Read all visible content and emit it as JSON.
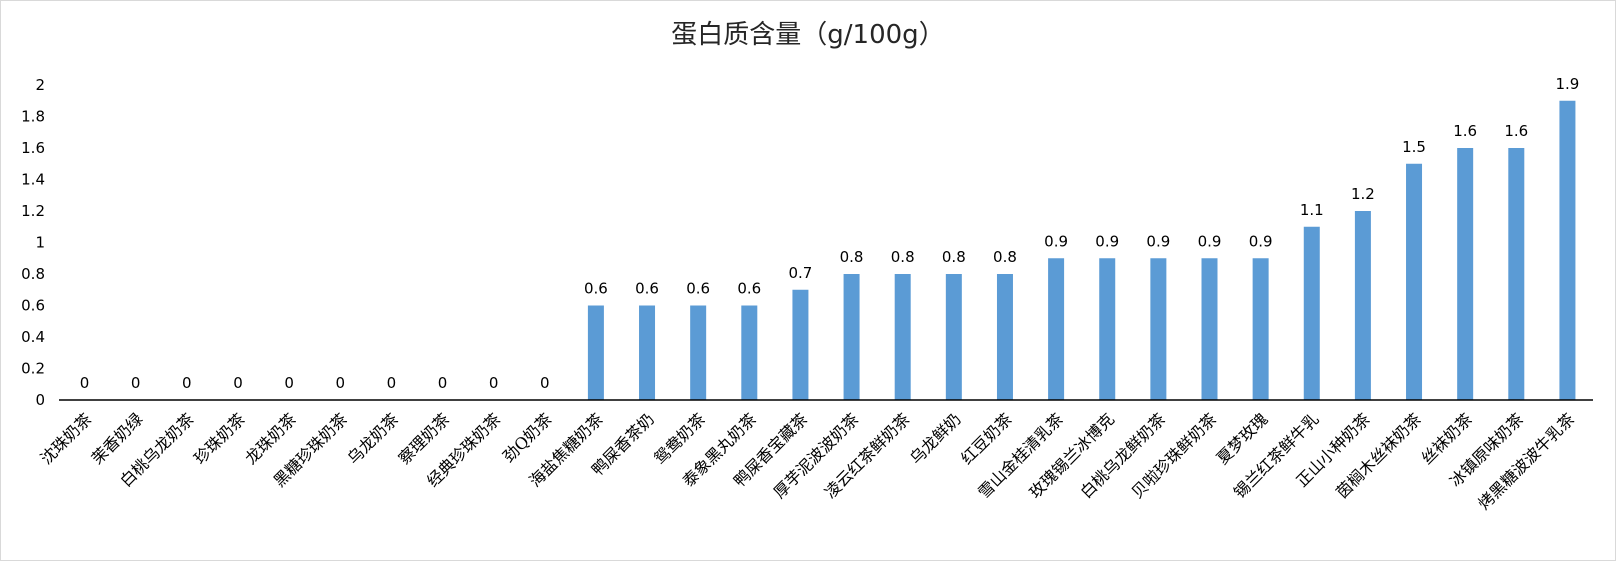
{
  "chart_data": {
    "type": "bar",
    "title": "蛋白质含量（g/100g）",
    "xlabel": "",
    "ylabel": "",
    "ylim": [
      0,
      2
    ],
    "y_ticks": [
      "0",
      "0.2",
      "0.4",
      "0.6",
      "0.8",
      "1",
      "1.2",
      "1.4",
      "1.6",
      "1.8",
      "2"
    ],
    "grid": false,
    "legend": "none",
    "bar_color": "#5b9bd5",
    "categories": [
      "沈珠奶茶",
      "茉香奶绿",
      "白桃乌龙奶茶",
      "珍珠奶茶",
      "龙珠奶茶",
      "黑糖珍珠奶茶",
      "乌龙奶茶",
      "察理奶茶",
      "经典珍珠奶茶",
      "劲Q奶茶",
      "海盐焦糖奶茶",
      "鸭屎香茶奶",
      "鸳鸯奶茶",
      "泰象黑丸奶茶",
      "鸭屎香宝藏茶",
      "厚芋泥波波奶茶",
      "凌云红茶鲜奶茶",
      "乌龙鲜奶",
      "红豆奶茶",
      "雪山金桂清乳茶",
      "玫瑰锡兰冰博克",
      "白桃乌龙鲜奶茶",
      "贝啦珍珠鲜奶茶",
      "夏梦玫瑰",
      "锡兰红茶鲜牛乳",
      "正山小种奶茶",
      "茵榈木丝袜奶茶",
      "丝袜奶茶",
      "冰镇原味奶茶",
      "烤黑糖波波牛乳茶"
    ],
    "values": [
      0,
      0,
      0,
      0,
      0,
      0,
      0,
      0,
      0,
      0,
      0.6,
      0.6,
      0.6,
      0.6,
      0.7,
      0.8,
      0.8,
      0.8,
      0.8,
      0.9,
      0.9,
      0.9,
      0.9,
      0.9,
      1.1,
      1.2,
      1.5,
      1.6,
      1.6,
      1.9
    ],
    "data_labels": [
      "0",
      "0",
      "0",
      "0",
      "0",
      "0",
      "0",
      "0",
      "0",
      "0",
      "0.6",
      "0.6",
      "0.6",
      "0.6",
      "0.7",
      "0.8",
      "0.8",
      "0.8",
      "0.8",
      "0.9",
      "0.9",
      "0.9",
      "0.9",
      "0.9",
      "1.1",
      "1.2",
      "1.5",
      "1.6",
      "1.6",
      "1.9"
    ]
  }
}
